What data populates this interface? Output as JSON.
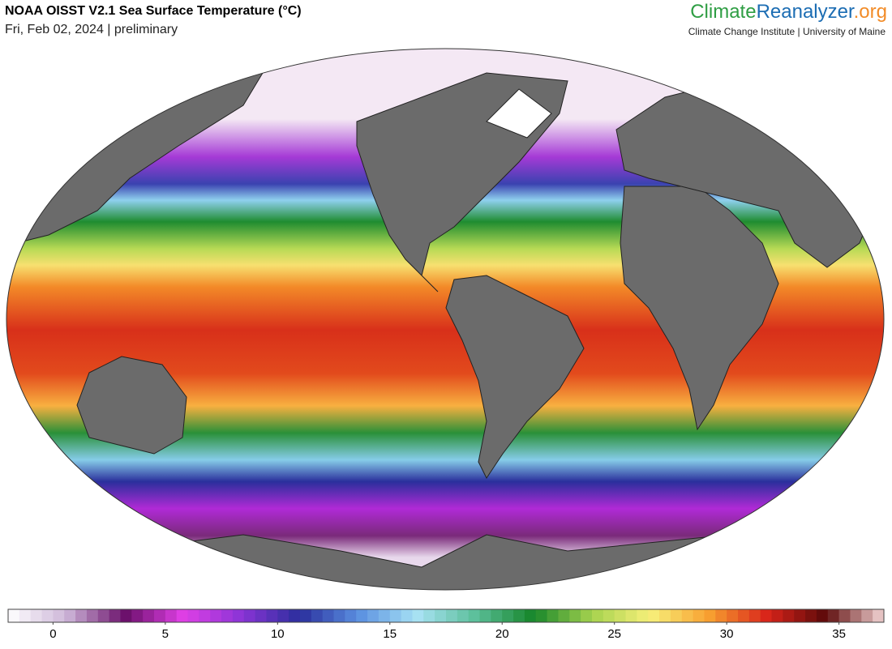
{
  "header": {
    "title": "NOAA OISST V2.1 Sea Surface Temperature (°C)",
    "subtitle": "Fri, Feb 02, 2024 | preliminary",
    "brand": [
      "Climate",
      "Reanalyzer",
      ".org"
    ],
    "brand_colors": [
      "#2f9e44",
      "#1c6db3",
      "#f28c28"
    ],
    "affiliation": "Climate Change Institute | University of Maine"
  },
  "colorbar": {
    "lim": [
      -2,
      37
    ],
    "ticks": [
      0,
      5,
      10,
      15,
      20,
      25,
      30,
      35
    ],
    "colors": [
      "#ffffff",
      "#cdb6d8",
      "#6a0f6a",
      "#e040e6",
      "#8a34d6",
      "#2a2f9c",
      "#5a8fe0",
      "#a8e2f4",
      "#5cbf9a",
      "#16862a",
      "#a6d24e",
      "#f7f07a",
      "#f8a030",
      "#d8241a",
      "#5c0a0a",
      "#f4d6d6"
    ]
  }
}
